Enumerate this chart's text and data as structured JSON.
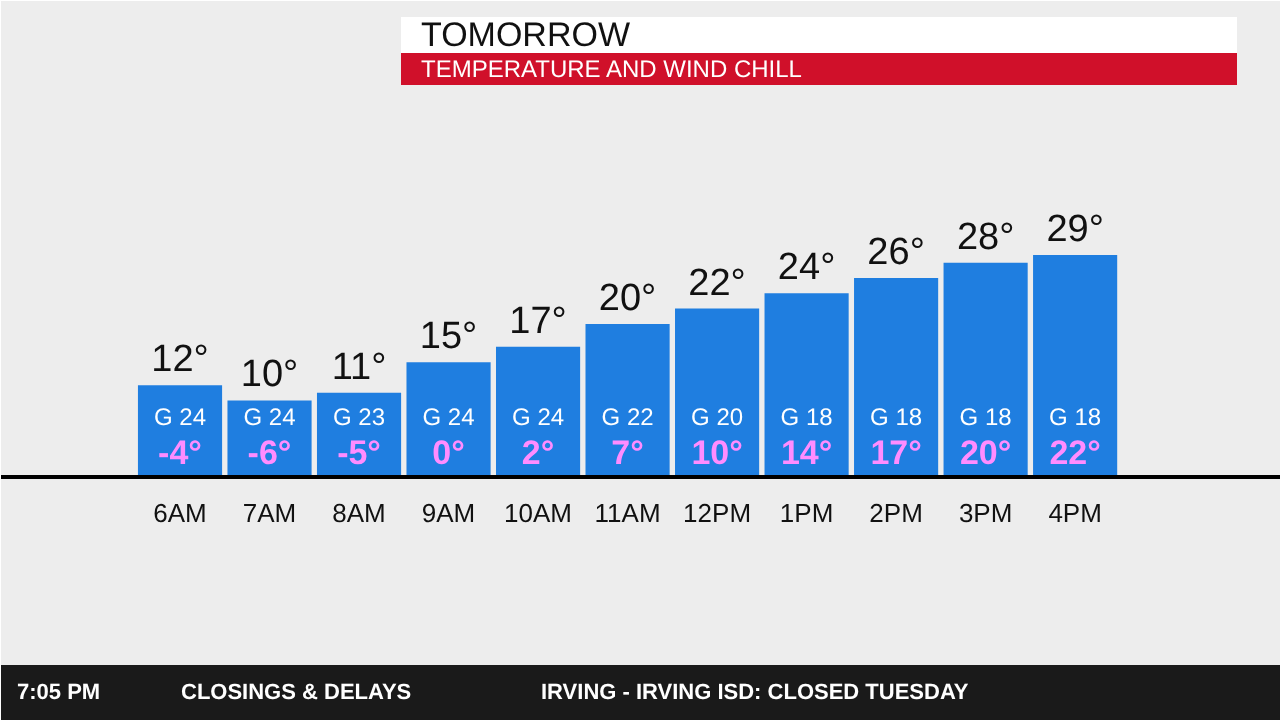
{
  "chart_data": {
    "type": "bar",
    "title": "TOMORROW",
    "subtitle": "TEMPERATURE AND WIND CHILL",
    "categories": [
      "6AM",
      "7AM",
      "8AM",
      "9AM",
      "10AM",
      "11AM",
      "12PM",
      "1PM",
      "2PM",
      "3PM",
      "4PM"
    ],
    "series": [
      {
        "color": "#1f7ee0",
        "values": [
          12,
          10,
          11,
          15,
          17,
          20,
          22,
          24,
          26,
          28,
          29
        ],
        "value_labels": [
          "12°",
          "10°",
          "11°",
          "15°",
          "17°",
          "20°",
          "22°",
          "24°",
          "26°",
          "28°",
          "29°"
        ]
      }
    ],
    "annotations": [
      "G 24",
      "-4°",
      "G 24",
      "-6°",
      "G 23",
      "-5°",
      "G 24",
      "0°",
      "G 24",
      "2°",
      "G 22",
      "7°",
      "G 20",
      "10°",
      "G 18",
      "14°",
      "G 18",
      "17°",
      "G 18",
      "20°",
      "G 18",
      "22°",
      "CLOSINGS & DELAYS",
      "IRVING - IRVING ISD: CLOSED TUESDAY",
      "7:05 PM"
    ]
  }
}
